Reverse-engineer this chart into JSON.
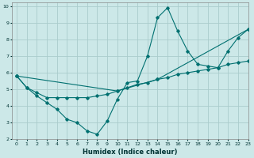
{
  "xlabel": "Humidex (Indice chaleur)",
  "background_color": "#cce8e8",
  "grid_color": "#aacccc",
  "line_color": "#007070",
  "xlim": [
    -0.5,
    23
  ],
  "ylim": [
    2,
    10.2
  ],
  "xticks": [
    0,
    1,
    2,
    3,
    4,
    5,
    6,
    7,
    8,
    9,
    10,
    11,
    12,
    13,
    14,
    15,
    16,
    17,
    18,
    19,
    20,
    21,
    22,
    23
  ],
  "yticks": [
    2,
    3,
    4,
    5,
    6,
    7,
    8,
    9,
    10
  ],
  "lines": [
    {
      "x": [
        0,
        1,
        2,
        3,
        4,
        5,
        6,
        7,
        8,
        9,
        10,
        11,
        12,
        13,
        14,
        15,
        16,
        17,
        18,
        19,
        20,
        21,
        22,
        23
      ],
      "y": [
        5.8,
        5.1,
        4.6,
        4.2,
        3.8,
        3.2,
        3.0,
        2.5,
        2.3,
        3.1,
        4.4,
        5.4,
        5.5,
        7.0,
        9.3,
        9.9,
        8.5,
        7.3,
        6.5,
        6.4,
        6.3,
        7.3,
        8.1,
        8.6
      ]
    },
    {
      "x": [
        0,
        1,
        2,
        3,
        4,
        5,
        6,
        7,
        8,
        9,
        10,
        11,
        12,
        13,
        14,
        15,
        16,
        17,
        18,
        19,
        20,
        21,
        22,
        23
      ],
      "y": [
        5.8,
        5.1,
        4.8,
        4.5,
        4.5,
        4.5,
        4.5,
        4.5,
        4.6,
        4.7,
        4.9,
        5.1,
        5.3,
        5.4,
        5.6,
        5.7,
        5.9,
        6.0,
        6.1,
        6.2,
        6.3,
        6.5,
        6.6,
        6.7
      ]
    },
    {
      "x": [
        0,
        10,
        14,
        23
      ],
      "y": [
        5.8,
        4.9,
        5.6,
        8.6
      ]
    }
  ]
}
